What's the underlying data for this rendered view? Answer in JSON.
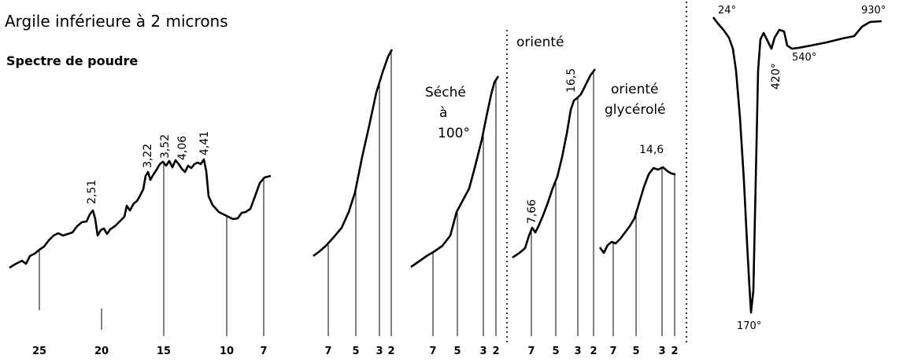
{
  "title": "Argile inférieure à 2 microns",
  "subtitle": "Spectre de poudre",
  "chart_data": [
    {
      "type": "line",
      "name": "powder",
      "title": "Spectre de poudre",
      "x_ticks": [
        "25",
        "20",
        "15",
        "10",
        "7"
      ],
      "peaks": [
        "2,51",
        "3,22",
        "3,52",
        "4,06",
        "4,41"
      ]
    },
    {
      "type": "line",
      "name": "sample-a",
      "x_ticks": [
        "7",
        "5",
        "3",
        "2"
      ]
    },
    {
      "type": "line",
      "name": "seche",
      "title": [
        "Séché",
        "à",
        "100°"
      ],
      "x_ticks": [
        "7",
        "5",
        "3",
        "2"
      ]
    },
    {
      "type": "line",
      "name": "oriente",
      "title": "orienté",
      "x_ticks": [
        "7",
        "5",
        "3",
        "2"
      ],
      "peaks": [
        "7,66",
        "16,5"
      ]
    },
    {
      "type": "line",
      "name": "oriente-glycerole",
      "title": [
        "orienté",
        "glycérolé"
      ],
      "x_ticks": [
        "7",
        "5",
        "3",
        "2"
      ],
      "peaks": [
        "14,6"
      ]
    },
    {
      "type": "line",
      "name": "dta",
      "temperatures": [
        "24°",
        "170°",
        "420°",
        "540°",
        "930°"
      ]
    }
  ]
}
